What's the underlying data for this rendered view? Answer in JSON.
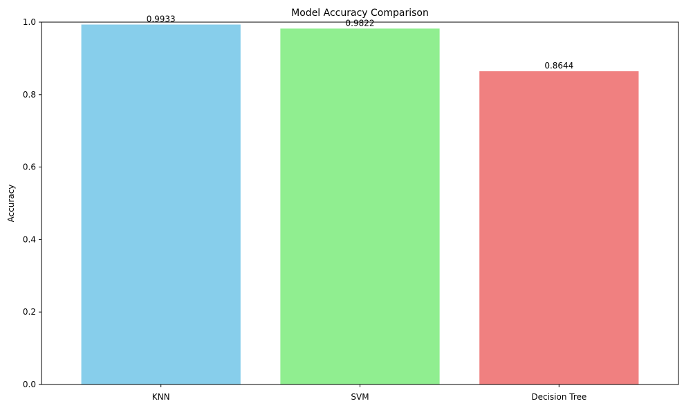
{
  "chart_data": {
    "type": "bar",
    "title": "Model Accuracy Comparison",
    "xlabel": "",
    "ylabel": "Accuracy",
    "categories": [
      "KNN",
      "SVM",
      "Decision Tree"
    ],
    "values": [
      0.9933,
      0.9822,
      0.8644
    ],
    "value_labels": [
      "0.9933",
      "0.9822",
      "0.8644"
    ],
    "colors": [
      "#87ceeb",
      "#90ee90",
      "#f08080"
    ],
    "ylim": [
      0,
      1.0
    ],
    "yticks": [
      0.0,
      0.2,
      0.4,
      0.6,
      0.8,
      1.0
    ],
    "ytick_labels": [
      "0.0",
      "0.2",
      "0.4",
      "0.6",
      "0.8",
      "1.0"
    ],
    "grid": false,
    "legend": "none"
  }
}
